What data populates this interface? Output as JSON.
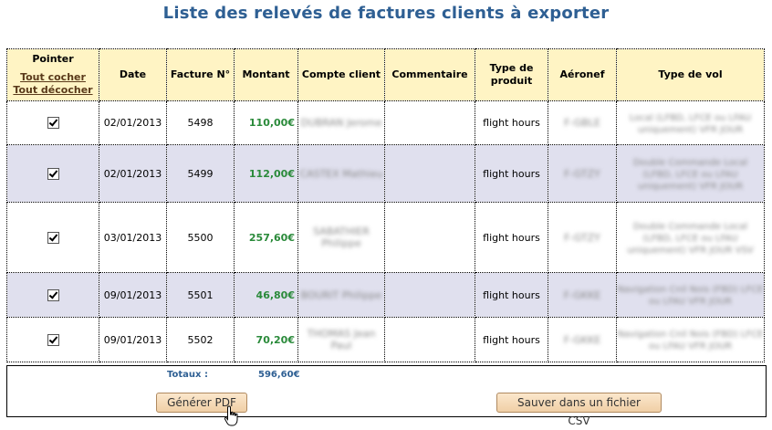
{
  "title": "Liste des relevés de factures clients à exporter",
  "header": {
    "pointer": "Pointer",
    "check_all": "Tout cocher",
    "uncheck_all": "Tout décocher",
    "date": "Date",
    "facture": "Facture N°",
    "montant": "Montant",
    "compte_client": "Compte client",
    "commentaire": "Commentaire",
    "type_produit": "Type de produit",
    "aeronef": "Aéronef",
    "type_vol": "Type de vol"
  },
  "rows": [
    {
      "checked": true,
      "date": "02/01/2013",
      "facture": "5498",
      "montant": "110,00€",
      "client": "DUBRAN Jerome",
      "commentaire": "",
      "produit": "flight hours",
      "aeronef": "F-GBLE",
      "type_vol": "Local (LFBD, LFCE ou LFAU uniquement) VFR JOUR"
    },
    {
      "checked": true,
      "date": "02/01/2013",
      "facture": "5499",
      "montant": "112,00€",
      "client": "CASTEX Mathieu",
      "commentaire": "",
      "produit": "flight hours",
      "aeronef": "F-GTZY",
      "type_vol": "Double Commande Local (LFBD, LFCE ou LFAU uniquement) VFR JOUR"
    },
    {
      "checked": true,
      "date": "03/01/2013",
      "facture": "5500",
      "montant": "257,60€",
      "client": "SABATHIER Philippe",
      "commentaire": "",
      "produit": "flight hours",
      "aeronef": "F-GTZY",
      "type_vol": "Double Commande Local (LFBD, LFCE ou LFAU uniquement) VFR JOUR VSV"
    },
    {
      "checked": true,
      "date": "09/01/2013",
      "facture": "5501",
      "montant": "46,80€",
      "client": "BOURIT Philippe",
      "commentaire": "",
      "produit": "flight hours",
      "aeronef": "F-GKKE",
      "type_vol": "Navigation Cnil Nois (FBD) LFCE ou LFAU VFR JOUR"
    },
    {
      "checked": true,
      "date": "09/01/2013",
      "facture": "5502",
      "montant": "70,20€",
      "client": "THOMAS Jean Paul",
      "commentaire": "",
      "produit": "flight hours",
      "aeronef": "F-GKKE",
      "type_vol": "Navigation Cnil Nois (FBD) LFCE ou LFAU VFR JOUR"
    }
  ],
  "totals": {
    "label": "Totaux :",
    "value": "596,60€"
  },
  "buttons": {
    "pdf": "Générer PDF",
    "csv": "Sauver dans un fichier CSV"
  },
  "colors": {
    "title": "#2e5f93",
    "header_bg": "#fff4c4",
    "row_even": "#e0e0ee",
    "amount": "#2a8a3a"
  },
  "icons": {
    "checkbox": "checkbox-checked-icon",
    "cursor": "hand-pointer-cursor-icon"
  }
}
